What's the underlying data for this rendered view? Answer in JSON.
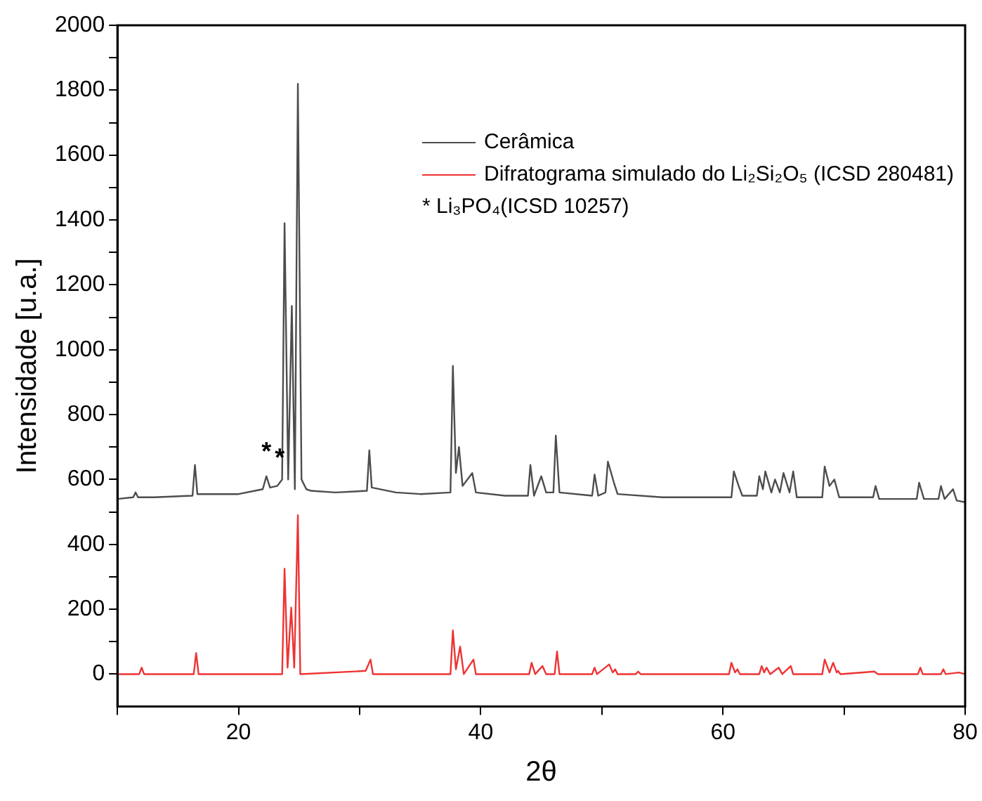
{
  "chart_data": {
    "type": "line",
    "xlabel": "2θ",
    "ylabel": "Intensidade [u.a.]",
    "xlim": [
      10,
      80
    ],
    "ylim": [
      -100,
      2000
    ],
    "xticks": [
      {
        "value": 10,
        "label": null
      },
      20,
      {
        "value": 30,
        "label": null
      },
      40,
      {
        "value": 50,
        "label": null
      },
      60,
      {
        "value": 70,
        "label": null
      },
      80
    ],
    "yticks": [
      0,
      {
        "value": 100,
        "label": null
      },
      200,
      {
        "value": 300,
        "label": null
      },
      400,
      {
        "value": 500,
        "label": null
      },
      600,
      {
        "value": 700,
        "label": null
      },
      800,
      {
        "value": 900,
        "label": null
      },
      1000,
      {
        "value": 1100,
        "label": null
      },
      1200,
      {
        "value": 1300,
        "label": null
      },
      1400,
      {
        "value": 1500,
        "label": null
      },
      1600,
      {
        "value": 1700,
        "label": null
      },
      1800,
      {
        "value": 1900,
        "label": null
      },
      2000
    ],
    "grid": false,
    "legend": "top right",
    "marker": "none",
    "line_style": "solid",
    "series": [
      {
        "name": "Cerâmica",
        "color": "#4d4d4d",
        "x": [
          10,
          11.3,
          11.5,
          11.7,
          13,
          16.2,
          16.4,
          16.6,
          20,
          22,
          22.3,
          22.6,
          23.2,
          23.4,
          23.6,
          23.8,
          24.1,
          24.4,
          24.65,
          24.9,
          25.2,
          25.6,
          26,
          28,
          30.6,
          30.8,
          31,
          33,
          35,
          37.5,
          37.7,
          37.95,
          38.2,
          38.5,
          39.3,
          39.6,
          42,
          43.9,
          44.1,
          44.4,
          45,
          45.4,
          46,
          46.2,
          46.5,
          49.2,
          49.4,
          49.7,
          50.3,
          50.5,
          51,
          51.3,
          55,
          60.7,
          60.9,
          61.3,
          61.6,
          62.8,
          63,
          63.3,
          63.5,
          64,
          64.3,
          64.7,
          65,
          65.5,
          65.8,
          66.1,
          68.2,
          68.4,
          68.8,
          69.2,
          69.6,
          72.4,
          72.6,
          72.9,
          76,
          76.2,
          76.6,
          77.8,
          78,
          78.3,
          79,
          79.3,
          80
        ],
        "values": [
          540,
          545,
          560,
          545,
          545,
          550,
          645,
          555,
          555,
          570,
          610,
          575,
          580,
          590,
          600,
          1390,
          600,
          1135,
          570,
          1820,
          600,
          570,
          565,
          560,
          565,
          690,
          575,
          560,
          555,
          560,
          950,
          620,
          700,
          580,
          620,
          560,
          550,
          550,
          645,
          550,
          610,
          560,
          560,
          735,
          560,
          550,
          615,
          550,
          560,
          655,
          590,
          555,
          545,
          545,
          625,
          580,
          550,
          550,
          610,
          570,
          625,
          560,
          600,
          560,
          620,
          560,
          625,
          545,
          545,
          640,
          580,
          600,
          545,
          545,
          580,
          540,
          540,
          590,
          540,
          540,
          580,
          540,
          570,
          535,
          530
        ]
      },
      {
        "name": "Difratograma simulado do Li₂Si₂O₅ (ICSD 280481)",
        "color": "#ee3333",
        "x": [
          10,
          11.8,
          12,
          12.2,
          16.3,
          16.5,
          16.7,
          23.6,
          23.8,
          24.05,
          24.35,
          24.6,
          24.9,
          25.1,
          30.5,
          30.9,
          31.1,
          37.5,
          37.7,
          37.95,
          38.3,
          38.6,
          39.4,
          39.6,
          44,
          44.2,
          44.5,
          45.1,
          45.4,
          46.1,
          46.3,
          46.5,
          49.2,
          49.4,
          49.6,
          50.6,
          50.9,
          51.1,
          51.3,
          52.8,
          53,
          53.2,
          60.5,
          60.7,
          61,
          61.2,
          61.4,
          63,
          63.2,
          63.4,
          63.6,
          63.9,
          64.6,
          64.9,
          65.6,
          65.8,
          68.2,
          68.4,
          68.8,
          69.1,
          69.4,
          69.5,
          69.7,
          72.5,
          72.8,
          76.1,
          76.3,
          76.5,
          78,
          78.2,
          78.4,
          79.5,
          80
        ],
        "values": [
          0,
          0,
          20,
          0,
          0,
          65,
          0,
          0,
          325,
          20,
          205,
          20,
          490,
          0,
          10,
          45,
          0,
          0,
          135,
          15,
          85,
          0,
          45,
          0,
          0,
          35,
          0,
          25,
          0,
          0,
          70,
          0,
          0,
          20,
          0,
          30,
          5,
          15,
          0,
          0,
          8,
          0,
          0,
          35,
          5,
          15,
          0,
          0,
          25,
          5,
          20,
          0,
          20,
          0,
          25,
          0,
          0,
          45,
          5,
          35,
          5,
          10,
          0,
          8,
          0,
          0,
          20,
          0,
          0,
          15,
          0,
          5,
          0
        ]
      }
    ],
    "annotations": [
      {
        "text": "*",
        "x": 22.3,
        "y": 610
      },
      {
        "text": "*",
        "x": 23.4,
        "y": 590
      },
      "* Li₃PO₄(ICSD 10257)"
    ]
  }
}
